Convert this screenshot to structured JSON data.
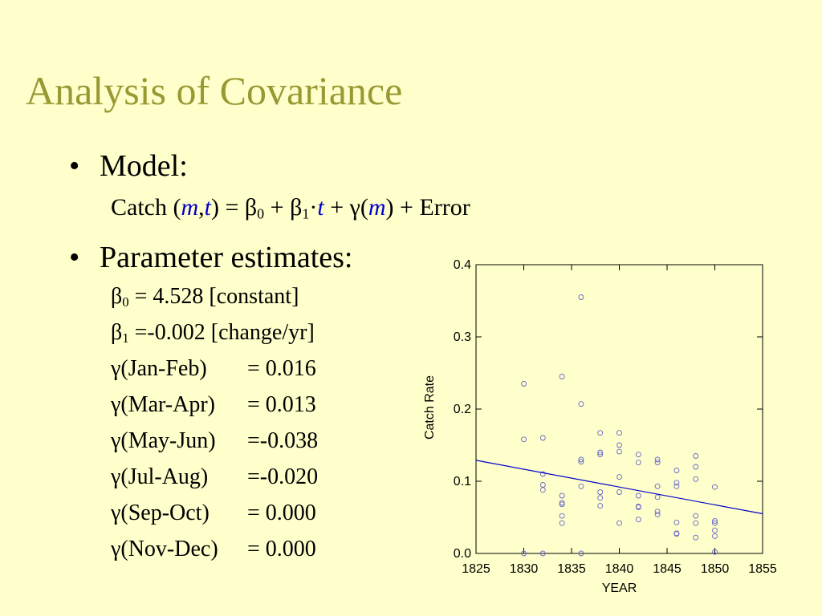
{
  "slide": {
    "title": "Analysis of Covariance",
    "bullet_model": "Model:",
    "model_eq": {
      "catch": "Catch (",
      "m": "m",
      "comma": ",",
      "t": "t",
      "eq": ") = β",
      "sub0": "0",
      "plus1": " + β",
      "sub1": "1",
      "dot": "·",
      "t2": "t",
      "plus2": " +  γ(",
      "m2": "m",
      "tail": ") + Error"
    },
    "bullet_params": "Parameter estimates:",
    "beta0": {
      "sym": "β",
      "sub": "0",
      "text": " = 4.528 [constant]"
    },
    "beta1": {
      "sym": "β",
      "sub": "1",
      "text": " =-0.002 [change/yr]"
    },
    "gammas": [
      {
        "label": "γ(Jan-Feb)",
        "value": "= 0.016"
      },
      {
        "label": "γ(Mar-Apr)",
        "value": "= 0.013"
      },
      {
        "label": "γ(May-Jun)",
        "value": "=-0.038"
      },
      {
        "label": "γ(Jul-Aug)",
        "value": "=-0.020"
      },
      {
        "label": "γ(Sep-Oct)",
        "value": "= 0.000"
      },
      {
        "label": "γ(Nov-Dec)",
        "value": "= 0.000"
      }
    ]
  },
  "chart_data": {
    "type": "scatter",
    "xlabel": "YEAR",
    "ylabel": "Catch Rate",
    "xlim": [
      1825,
      1855
    ],
    "ylim": [
      0,
      0.4
    ],
    "xticks": [
      "1825",
      "1830",
      "1835",
      "1840",
      "1845",
      "1850",
      "1855"
    ],
    "yticks": [
      "0.0",
      "0.1",
      "0.2",
      "0.3",
      "0.4"
    ],
    "point_color": "#6666cc",
    "line_color": "#0000cc",
    "points": [
      [
        1830,
        0.235
      ],
      [
        1830,
        0.158
      ],
      [
        1830,
        0.0
      ],
      [
        1832,
        0.16
      ],
      [
        1832,
        0.11
      ],
      [
        1832,
        0.095
      ],
      [
        1832,
        0.088
      ],
      [
        1832,
        0.0
      ],
      [
        1834,
        0.245
      ],
      [
        1834,
        0.08
      ],
      [
        1834,
        0.07
      ],
      [
        1834,
        0.068
      ],
      [
        1834,
        0.052
      ],
      [
        1834,
        0.042
      ],
      [
        1836,
        0.355
      ],
      [
        1836,
        0.207
      ],
      [
        1836,
        0.13
      ],
      [
        1836,
        0.127
      ],
      [
        1836,
        0.093
      ],
      [
        1836,
        0.0
      ],
      [
        1838,
        0.167
      ],
      [
        1838,
        0.14
      ],
      [
        1838,
        0.137
      ],
      [
        1838,
        0.085
      ],
      [
        1838,
        0.077
      ],
      [
        1838,
        0.066
      ],
      [
        1840,
        0.167
      ],
      [
        1840,
        0.15
      ],
      [
        1840,
        0.141
      ],
      [
        1840,
        0.106
      ],
      [
        1840,
        0.085
      ],
      [
        1840,
        0.042
      ],
      [
        1842,
        0.137
      ],
      [
        1842,
        0.126
      ],
      [
        1842,
        0.08
      ],
      [
        1842,
        0.065
      ],
      [
        1842,
        0.064
      ],
      [
        1842,
        0.047
      ],
      [
        1844,
        0.13
      ],
      [
        1844,
        0.126
      ],
      [
        1844,
        0.093
      ],
      [
        1844,
        0.078
      ],
      [
        1844,
        0.058
      ],
      [
        1844,
        0.054
      ],
      [
        1846,
        0.115
      ],
      [
        1846,
        0.098
      ],
      [
        1846,
        0.093
      ],
      [
        1846,
        0.043
      ],
      [
        1846,
        0.028
      ],
      [
        1846,
        0.027
      ],
      [
        1848,
        0.135
      ],
      [
        1848,
        0.12
      ],
      [
        1848,
        0.103
      ],
      [
        1848,
        0.052
      ],
      [
        1848,
        0.042
      ],
      [
        1848,
        0.022
      ],
      [
        1850,
        0.092
      ],
      [
        1850,
        0.045
      ],
      [
        1850,
        0.042
      ],
      [
        1850,
        0.032
      ],
      [
        1850,
        0.024
      ],
      [
        1850,
        0.002
      ]
    ],
    "fit_line": {
      "x": [
        1825,
        1855
      ],
      "y": [
        0.129,
        0.055
      ]
    }
  }
}
